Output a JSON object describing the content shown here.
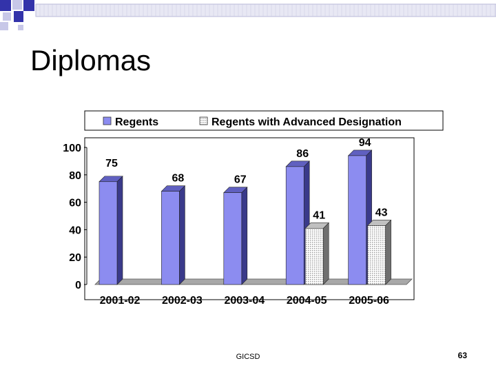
{
  "slide": {
    "title": "Diplomas",
    "footer": "GICSD",
    "page_number": "63"
  },
  "colors": {
    "regents": "#8c8cf0",
    "advanced": "#d8d8d8",
    "deco_blue": "#3333aa",
    "deco_light": "#c8c8e8"
  },
  "chart_data": {
    "type": "bar",
    "categories": [
      "2001-02",
      "2002-03",
      "2003-04",
      "2004-05",
      "2005-06"
    ],
    "series": [
      {
        "name": "Regents",
        "values": [
          75,
          68,
          67,
          86,
          94
        ]
      },
      {
        "name": "Regents with Advanced Designation",
        "values": [
          null,
          null,
          null,
          41,
          43
        ]
      }
    ],
    "y_ticks": [
      0,
      20,
      40,
      60,
      80,
      100
    ],
    "ylim": [
      0,
      100
    ],
    "legend_position": "top",
    "grid": false
  }
}
